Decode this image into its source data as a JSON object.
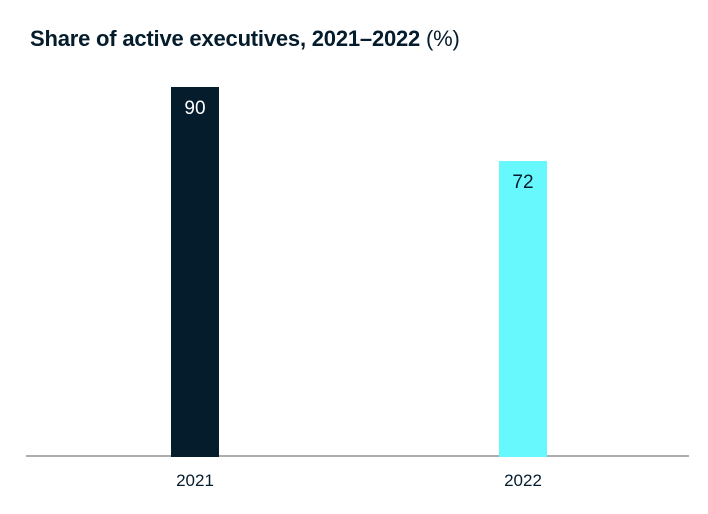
{
  "title": {
    "main": "Share of active executives, 2021–2022",
    "suffix": " (%)"
  },
  "chart_data": {
    "type": "bar",
    "title": "Share of active executives, 2021–2022 (%)",
    "categories": [
      "2021",
      "2022"
    ],
    "values": [
      90,
      72
    ],
    "xlabel": "",
    "ylabel": "",
    "ylim": [
      0,
      90
    ],
    "grid": false,
    "legend": "none",
    "value_label_position": "inside-top",
    "bar_colors": [
      "#051C2C",
      "#66F8FC"
    ],
    "value_label_colors": [
      "#FFFFFF",
      "#051C2C"
    ]
  },
  "colors": {
    "navy": "#051C2C",
    "cyan": "#66F8FC",
    "axis_line": "#ADADAD",
    "background": "#FFFFFF"
  }
}
